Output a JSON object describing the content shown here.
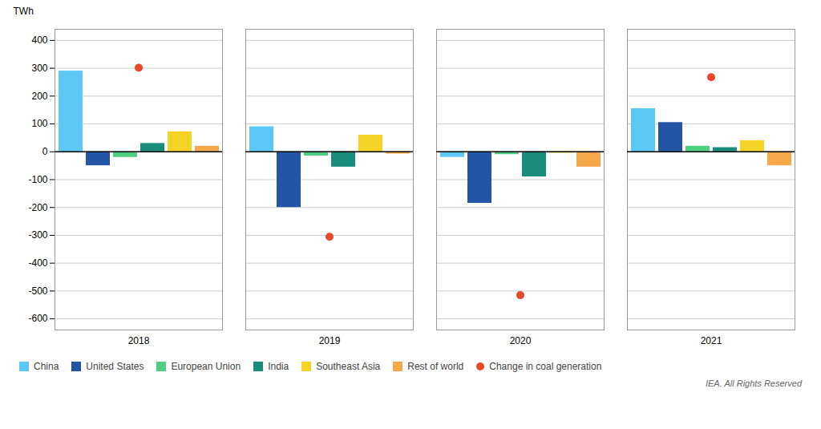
{
  "chart_data": {
    "type": "bar",
    "categories": [
      "2018",
      "2019",
      "2020",
      "2021"
    ],
    "series": [
      {
        "name": "China",
        "color": "#5BC8F5",
        "values": [
          290,
          90,
          -20,
          155
        ]
      },
      {
        "name": "United States",
        "color": "#2255A4",
        "values": [
          -50,
          -200,
          -185,
          105
        ]
      },
      {
        "name": "European Union",
        "color": "#4DCF82",
        "values": [
          -20,
          -15,
          -10,
          20
        ]
      },
      {
        "name": "India",
        "color": "#1A8C7A",
        "values": [
          30,
          -55,
          -90,
          15
        ]
      },
      {
        "name": "Southeast Asia",
        "color": "#F5D327",
        "values": [
          72,
          60,
          -5,
          40
        ]
      },
      {
        "name": "Rest of world",
        "color": "#F5A84A",
        "values": [
          20,
          -8,
          -55,
          -50
        ]
      },
      {
        "name": "Change in coal generation",
        "type": "scatter",
        "marker": "circle",
        "color": "#E8472A",
        "values": [
          302,
          -305,
          -515,
          268
        ]
      }
    ],
    "ylabel": "TWh",
    "ylim": [
      -640,
      440
    ],
    "yticks": [
      -600,
      -500,
      -400,
      -300,
      -200,
      -100,
      0,
      100,
      200,
      300,
      400
    ],
    "grid": true,
    "legend": "bottom",
    "annotations": [
      "IEA. All Rights Reserved"
    ]
  }
}
